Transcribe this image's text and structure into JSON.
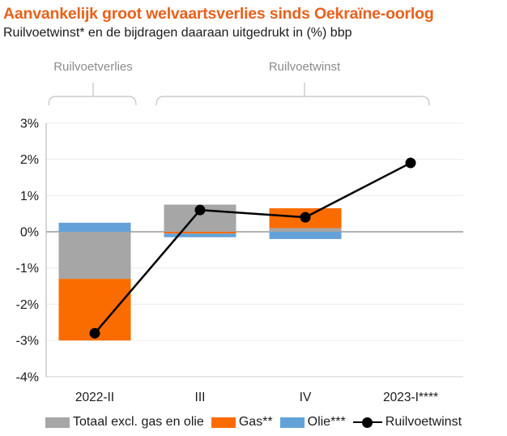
{
  "header": {
    "title": "Aanvankelijk groot welvaartsverlies sinds Oekraïne-oorlog",
    "subtitle": "Ruilvoetwinst* en de bijdragen daaraan uitgedrukt in (%) bbp"
  },
  "annotations": {
    "loss_label": "Ruilvoetverlies",
    "gain_label": "Ruilvoetwinst"
  },
  "colors": {
    "title_orange": "#E8611C",
    "bar_gray": "#A6A6A6",
    "bar_orange": "#FB6C00",
    "bar_blue": "#63A2D8",
    "line_black": "#000000",
    "zero_line_gray": "#999999",
    "grid_line_gray": "#ECECEC",
    "axis_line_gray": "#BFBFBF",
    "baseline_gray": "#D9D9D9",
    "bracket_gray": "#C2C2C2",
    "bracket_text_gray": "#8C8C8C",
    "text_dark": "#1a1a1a"
  },
  "chart_data": {
    "type": "bar",
    "subtype": "stacked-bars-with-line-overlay",
    "title": "Aanvankelijk groot welvaartsverlies sinds Oekraïne-oorlog",
    "subtitle": "Ruilvoetwinst* en de bijdragen daaraan uitgedrukt in (%) bbp",
    "categories": [
      "2022-II",
      "III",
      "IV",
      "2023-I****"
    ],
    "series": [
      {
        "name": "Totaal excl. gas en olie",
        "color": "#A6A6A6",
        "values": [
          -1.3,
          0.75,
          0.1,
          0
        ]
      },
      {
        "name": "Gas**",
        "color": "#FB6C00",
        "values": [
          -1.7,
          -0.05,
          0.55,
          0
        ]
      },
      {
        "name": "Olie***",
        "color": "#63A2D8",
        "values": [
          0.25,
          -0.1,
          -0.2,
          0
        ]
      }
    ],
    "line_series": {
      "name": "Ruilvoetwinst",
      "color": "#000000",
      "values": [
        -2.8,
        0.6,
        0.4,
        1.9
      ]
    },
    "xlabel": "",
    "ylabel": "",
    "ylim": [
      -4,
      3
    ],
    "yticks": [
      {
        "label": "3%",
        "value": 3
      },
      {
        "label": "2%",
        "value": 2
      },
      {
        "label": "1%",
        "value": 1
      },
      {
        "label": "0%",
        "value": 0
      },
      {
        "label": "-1%",
        "value": -1
      },
      {
        "label": "-2%",
        "value": -2
      },
      {
        "label": "-3%",
        "value": -3
      },
      {
        "label": "-4%",
        "value": -4
      }
    ],
    "grid": "horizontal",
    "legend_position": "bottom"
  },
  "legend": {
    "items": [
      {
        "label": "Totaal excl. gas en olie",
        "swatch": "gray-square"
      },
      {
        "label": "Gas**",
        "swatch": "orange-square"
      },
      {
        "label": "Olie***",
        "swatch": "blue-square"
      },
      {
        "label": "Ruilvoetwinst",
        "swatch": "black-line-dot"
      }
    ]
  }
}
